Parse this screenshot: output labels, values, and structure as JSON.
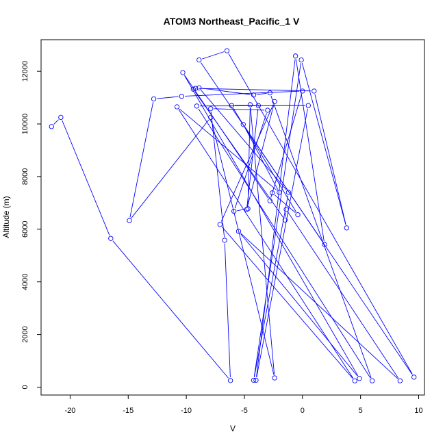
{
  "chart_data": {
    "type": "scatter",
    "title": "ATOM3 Northeast_Pacific_1 V",
    "xlabel": "V",
    "ylabel": "Altitude (m)",
    "xlim": [
      -22.5,
      10.5
    ],
    "ylim": [
      -300,
      13200
    ],
    "xticks": [
      -20,
      -15,
      -10,
      -5,
      0,
      5,
      10
    ],
    "yticks": [
      0,
      2000,
      4000,
      6000,
      8000,
      10000,
      12000
    ],
    "grid": false,
    "legend": "none",
    "color": "#0000ff",
    "marker": "open-circle",
    "connected": true,
    "points": [
      {
        "x": -21.6,
        "y": 9900
      },
      {
        "x": -20.8,
        "y": 10250
      },
      {
        "x": -16.5,
        "y": 5650
      },
      {
        "x": -6.2,
        "y": 250
      },
      {
        "x": -6.7,
        "y": 5580
      },
      {
        "x": -7.9,
        "y": 10580
      },
      {
        "x": -3.0,
        "y": 10520
      },
      {
        "x": -5.9,
        "y": 6680
      },
      {
        "x": -4.7,
        "y": 6780
      },
      {
        "x": -4.5,
        "y": 10730
      },
      {
        "x": -2.4,
        "y": 350
      },
      {
        "x": -7.9,
        "y": 10250
      },
      {
        "x": -14.9,
        "y": 6330
      },
      {
        "x": -12.8,
        "y": 10950
      },
      {
        "x": -10.4,
        "y": 11050
      },
      {
        "x": 0.0,
        "y": 11250
      },
      {
        "x": -2.8,
        "y": 7080
      },
      {
        "x": -10.3,
        "y": 11950
      },
      {
        "x": 4.9,
        "y": 330
      },
      {
        "x": -5.5,
        "y": 5920
      },
      {
        "x": 8.4,
        "y": 240
      },
      {
        "x": -1.4,
        "y": 6750
      },
      {
        "x": -1.5,
        "y": 6350
      },
      {
        "x": -9.4,
        "y": 11320
      },
      {
        "x": -9.2,
        "y": 11350
      },
      {
        "x": 1.0,
        "y": 11250
      },
      {
        "x": 3.8,
        "y": 6050
      },
      {
        "x": -0.1,
        "y": 12430
      },
      {
        "x": -4.2,
        "y": 260
      },
      {
        "x": -1.2,
        "y": 7400
      },
      {
        "x": -8.9,
        "y": 11370
      },
      {
        "x": -4.2,
        "y": 11100
      },
      {
        "x": -2.8,
        "y": 11180
      },
      {
        "x": 6.0,
        "y": 240
      },
      {
        "x": -9.1,
        "y": 10680
      },
      {
        "x": 0.5,
        "y": 10700
      },
      {
        "x": -4.0,
        "y": 260
      },
      {
        "x": -0.6,
        "y": 12580
      },
      {
        "x": 1.9,
        "y": 5420
      },
      {
        "x": -8.9,
        "y": 12430
      },
      {
        "x": -6.5,
        "y": 12780
      },
      {
        "x": 9.6,
        "y": 380
      },
      {
        "x": -5.1,
        "y": 9980
      },
      {
        "x": -2.0,
        "y": 7400
      },
      {
        "x": -10.8,
        "y": 10650
      },
      {
        "x": 4.5,
        "y": 240
      },
      {
        "x": -7.1,
        "y": 6180
      },
      {
        "x": -2.4,
        "y": 10850
      },
      {
        "x": -4.8,
        "y": 6750
      },
      {
        "x": -3.8,
        "y": 10700
      },
      {
        "x": -6.1,
        "y": 10700
      },
      {
        "x": -0.4,
        "y": 6550
      },
      {
        "x": -2.6,
        "y": 7380
      }
    ]
  }
}
